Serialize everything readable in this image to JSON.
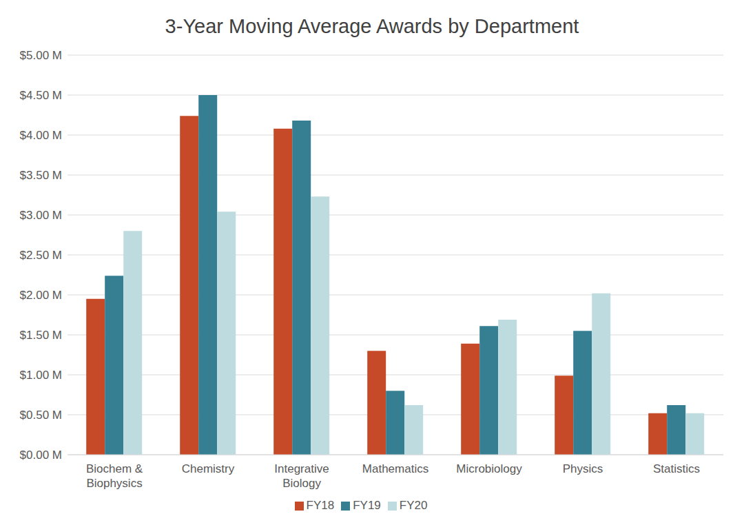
{
  "chart_data": {
    "type": "bar",
    "title": "3-Year Moving Average Awards by Department",
    "categories": [
      "Biochem & Biophysics",
      "Chemistry",
      "Integrative Biology",
      "Mathematics",
      "Microbiology",
      "Physics",
      "Statistics"
    ],
    "series": [
      {
        "name": "FY18",
        "color": "#C64A27",
        "values": [
          1.95,
          4.24,
          4.08,
          1.3,
          1.39,
          0.99,
          0.52
        ]
      },
      {
        "name": "FY19",
        "color": "#367F93",
        "values": [
          2.24,
          4.5,
          4.18,
          0.8,
          1.61,
          1.55,
          0.62
        ]
      },
      {
        "name": "FY20",
        "color": "#BEDCE0",
        "values": [
          2.8,
          3.04,
          3.23,
          0.62,
          1.69,
          2.02,
          0.52
        ]
      }
    ],
    "ylim": [
      0,
      5
    ],
    "yticks": [
      {
        "value": 0,
        "label": "$0.00 M"
      },
      {
        "value": 0.5,
        "label": "$0.50 M"
      },
      {
        "value": 1,
        "label": "$1.00 M"
      },
      {
        "value": 1.5,
        "label": "$1.50 M"
      },
      {
        "value": 2,
        "label": "$2.00 M"
      },
      {
        "value": 2.5,
        "label": "$2.50 M"
      },
      {
        "value": 3,
        "label": "$3.00 M"
      },
      {
        "value": 3.5,
        "label": "$3.50 M"
      },
      {
        "value": 4,
        "label": "$4.00 M"
      },
      {
        "value": 4.5,
        "label": "$4.50 M"
      },
      {
        "value": 5,
        "label": "$5.00 M"
      }
    ],
    "grid": true,
    "legend": "bottom"
  }
}
